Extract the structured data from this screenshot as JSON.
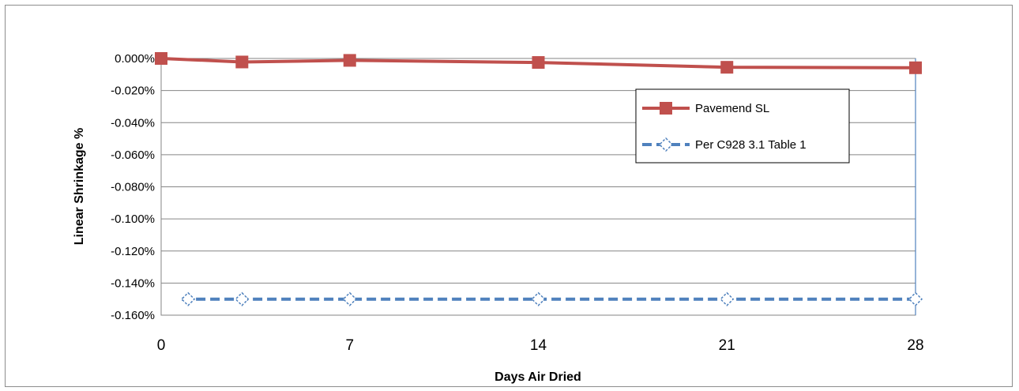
{
  "chart_data": {
    "type": "line",
    "xlabel": "Days Air Dried",
    "ylabel": "Linear Shrinkage %",
    "xlim": [
      0,
      28
    ],
    "ylim": [
      -0.16,
      0.0
    ],
    "x_ticks": [
      0,
      7,
      14,
      21,
      28
    ],
    "x_tick_labels": [
      "0",
      "7",
      "14",
      "21",
      "28"
    ],
    "y_ticks": [
      0.0,
      -0.02,
      -0.04,
      -0.06,
      -0.08,
      -0.1,
      -0.12,
      -0.14,
      -0.16
    ],
    "y_tick_labels": [
      "0.000%",
      "-0.020%",
      "-0.040%",
      "-0.060%",
      "-0.080%",
      "-0.100%",
      "-0.120%",
      "-0.140%",
      "-0.160%"
    ],
    "grid": true,
    "legend_position": "top-right",
    "series": [
      {
        "name": "Pavemend SL",
        "color": "#c0504d",
        "marker": "square",
        "line_style": "solid",
        "x": [
          0,
          3,
          7,
          14,
          21,
          28
        ],
        "y": [
          0.0,
          -0.0022,
          -0.0012,
          -0.0025,
          -0.0055,
          -0.0058
        ]
      },
      {
        "name": "Per C928 3.1 Table 1",
        "color": "#4f81bd",
        "marker": "diamond-open",
        "line_style": "dashed",
        "x": [
          1,
          3,
          7,
          14,
          21,
          28
        ],
        "y": [
          -0.15,
          -0.15,
          -0.15,
          -0.15,
          -0.15,
          -0.15
        ]
      }
    ]
  }
}
